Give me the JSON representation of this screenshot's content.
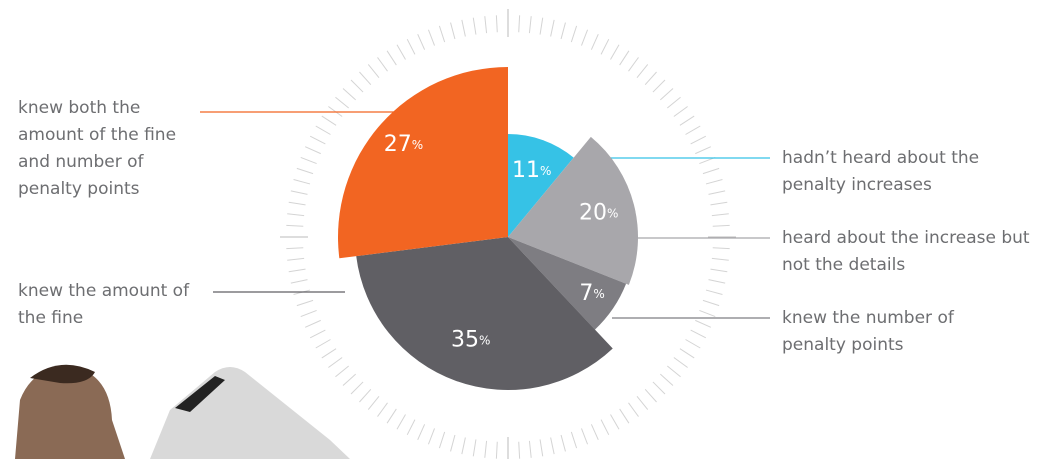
{
  "chart_data": {
    "type": "pie",
    "categories": [
      "hadn’t heard about the penalty increases",
      "heard about the increase but not the details",
      "knew the number of penalty points",
      "knew the amount of the fine",
      "knew both the amount of the fine and number of penalty points"
    ],
    "values": [
      11,
      20,
      7,
      35,
      27
    ],
    "value_labels": [
      "11%",
      "20%",
      "7%",
      "35%",
      "27%"
    ],
    "colors": [
      "#36c2e6",
      "#a8a7ab",
      "#7e7d82",
      "#605f64",
      "#f26522"
    ]
  }
}
